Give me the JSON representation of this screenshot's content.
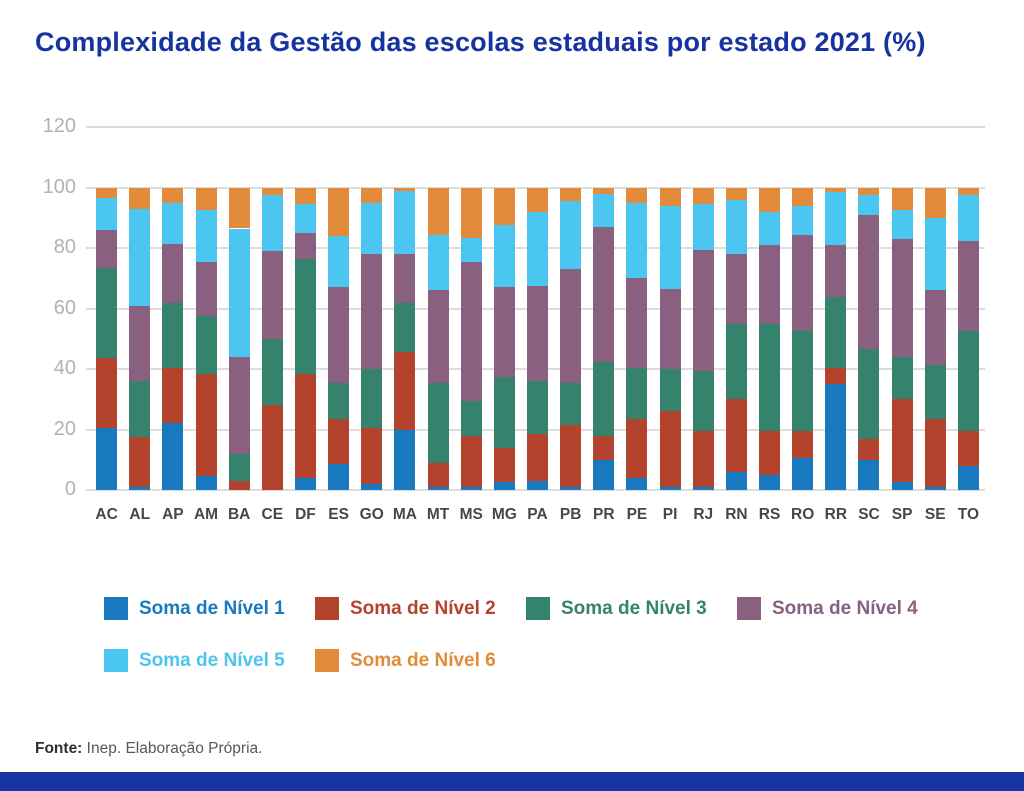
{
  "title": "Complexidade da Gestão das escolas estaduais por estado 2021 (%)",
  "source": {
    "label": "Fonte:",
    "text": " Inep. Elaboração Própria."
  },
  "colors": {
    "title": "#1733a0",
    "y_tick": "#b0b2b4",
    "x_label": "#474747",
    "gridline": "#dddddd",
    "source_label": "#303030",
    "source_text": "#58585a",
    "footer_band": "#1733a0",
    "background": "#ffffff"
  },
  "chart_data": {
    "type": "bar",
    "stacked": true,
    "unit": "%",
    "title": "Complexidade da Gestão das escolas estaduais por estado 2021 (%)",
    "xlabel": "",
    "ylabel": "",
    "ylim": [
      0,
      120
    ],
    "y_ticks": [
      0,
      20,
      40,
      60,
      80,
      100,
      120
    ],
    "grid": true,
    "legend_position": "bottom",
    "categories": [
      "AC",
      "AL",
      "AP",
      "AM",
      "BA",
      "CE",
      "DF",
      "ES",
      "GO",
      "MA",
      "MT",
      "MS",
      "MG",
      "PA",
      "PB",
      "PR",
      "PE",
      "PI",
      "RJ",
      "RN",
      "RS",
      "RO",
      "RR",
      "SC",
      "SP",
      "SE",
      "TO"
    ],
    "series": [
      {
        "name": "Soma de Nível 1",
        "color": "#1879bf",
        "values": [
          20.5,
          1,
          22,
          4.5,
          0,
          0,
          4,
          8.5,
          2,
          20,
          1,
          1,
          2.5,
          3,
          1,
          10,
          4,
          1,
          1,
          6,
          5,
          10.5,
          35,
          10,
          2.5,
          1,
          8
        ]
      },
      {
        "name": "Soma de Nível 2",
        "color": "#b4432e",
        "values": [
          23,
          16.5,
          18.5,
          34,
          3,
          28,
          34.5,
          15,
          18.5,
          25.5,
          8,
          17,
          11.5,
          15.5,
          20.5,
          8,
          19.5,
          25,
          18.5,
          24,
          14.5,
          9,
          5.5,
          7,
          27.5,
          22.5,
          11.5
        ]
      },
      {
        "name": "Soma de Nível 3",
        "color": "#35836c",
        "values": [
          30,
          18.5,
          21.5,
          19,
          9,
          22,
          38,
          12,
          19.5,
          16.5,
          26.5,
          11.5,
          23.5,
          17.5,
          14,
          24.5,
          17,
          14,
          20,
          25,
          35.5,
          33,
          23.5,
          29.5,
          14,
          18,
          33
        ]
      },
      {
        "name": "Soma de Nível 4",
        "color": "#8a6080",
        "values": [
          12.5,
          25,
          19.5,
          18,
          32,
          29,
          8.5,
          31.5,
          38,
          16,
          30.5,
          46,
          29.5,
          31.5,
          37.5,
          44.5,
          29.5,
          26.5,
          40,
          23,
          26,
          32,
          17,
          44.5,
          39,
          24.5,
          30
        ]
      },
      {
        "name": "Soma de Nível 5",
        "color": "#4ac6f0",
        "values": [
          10.5,
          32,
          13.5,
          17,
          42.5,
          18.5,
          9.5,
          17,
          17,
          21,
          18.5,
          8,
          20.5,
          24.5,
          22.5,
          11,
          25,
          27.5,
          15,
          18,
          11,
          9.5,
          17.5,
          6.5,
          9.5,
          24,
          15
        ]
      },
      {
        "name": "Soma de Nível 6",
        "color": "#e28c3b",
        "values": [
          3.5,
          7,
          5,
          7.5,
          13.5,
          2.5,
          5.5,
          16,
          5,
          1,
          15.5,
          16.5,
          12.5,
          8,
          4.5,
          2,
          5,
          6,
          5.5,
          4,
          8,
          6,
          1.5,
          2.5,
          7.5,
          10,
          2.5
        ]
      }
    ]
  }
}
